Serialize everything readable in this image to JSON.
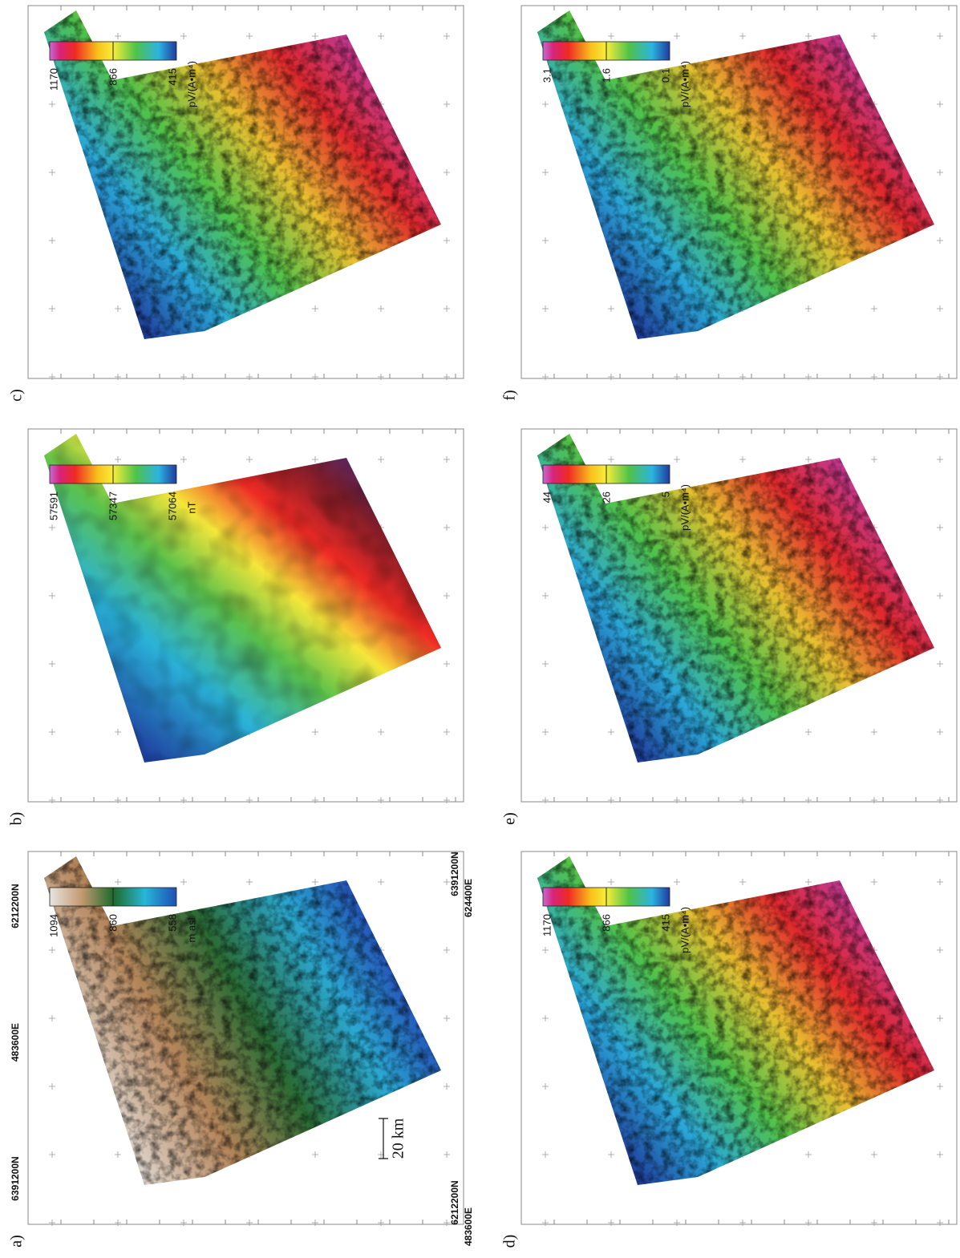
{
  "panels": [
    {
      "label": "a)",
      "colorbar": {
        "labels": [
          "1094",
          "860",
          "558"
        ],
        "unit": "m asl"
      }
    },
    {
      "label": "b)",
      "colorbar": {
        "labels": [
          "57591",
          "57347",
          "57064"
        ],
        "unit": "nT"
      }
    },
    {
      "label": "c)",
      "colorbar": {
        "labels": [
          "1170",
          "866",
          "415"
        ],
        "unit": "pV/(A•m⁴)"
      }
    },
    {
      "label": "d)",
      "colorbar": {
        "labels": [
          "1170",
          "866",
          "415"
        ],
        "unit": "pV/(A•m⁴)"
      }
    },
    {
      "label": "e)",
      "colorbar": {
        "labels": [
          "44",
          "26",
          "5"
        ],
        "unit": "pV/(A•m⁴)"
      }
    },
    {
      "label": "f)",
      "colorbar": {
        "labels": [
          "3.1",
          "1.6",
          "0.1"
        ],
        "unit": "pV/(A•m⁴)"
      }
    }
  ],
  "corner_labels": {
    "top_left_n": "6391200N",
    "bottom_left_n": "6212200N",
    "left_e": "483600E",
    "top_right_n": "6391200N",
    "top_right_e": "624400E",
    "bottom_right_n": "6212200N",
    "bottom_right_e": "483600E"
  },
  "scale_bar": "20 km"
}
